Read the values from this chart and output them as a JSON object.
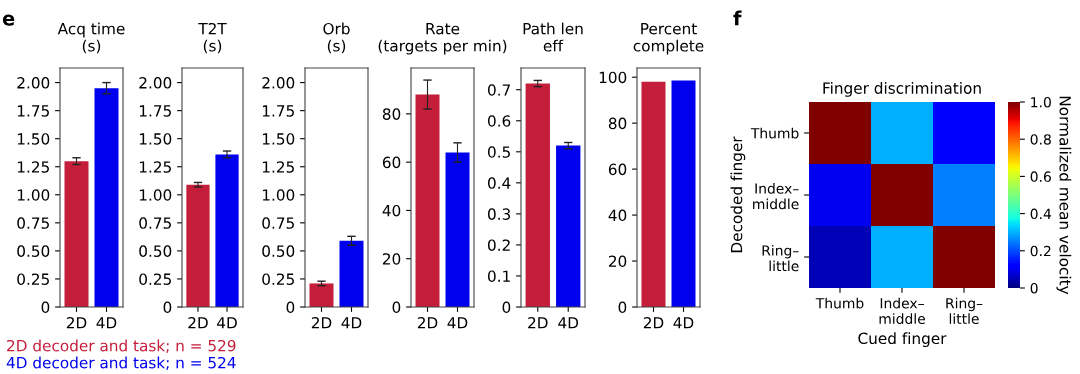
{
  "chart_data": [
    {
      "type": "bar",
      "title": "Acq time\n(s)",
      "categories": [
        "2D",
        "4D"
      ],
      "values": [
        1.3,
        1.95
      ],
      "errors": [
        0.03,
        0.05
      ],
      "colors": [
        "#c41e3a",
        "#0000ee"
      ],
      "ylim": [
        0,
        2.13
      ],
      "yticks": [
        0,
        0.25,
        {
          "value": 0.5,
          "label": "0.50"
        },
        0.75,
        {
          "value": 1.0,
          "label": "1.00"
        },
        1.25,
        {
          "value": 1.5,
          "label": "1.50"
        },
        1.75,
        {
          "value": 2.0,
          "label": "2.00"
        }
      ],
      "grid": false,
      "legend": false,
      "annotations": [
        "e",
        "2D decoder and task; n = 529",
        "4D decoder and task; n = 524"
      ]
    },
    {
      "type": "bar",
      "title": "T2T\n(s)",
      "categories": [
        "2D",
        "4D"
      ],
      "values": [
        1.09,
        1.36
      ],
      "errors": [
        0.02,
        0.03
      ],
      "colors": [
        "#c41e3a",
        "#0000ee"
      ],
      "ylim": [
        0,
        2.13
      ],
      "yticks": [
        0,
        0.25,
        {
          "value": 0.5,
          "label": "0.50"
        },
        0.75,
        {
          "value": 1.0,
          "label": "1.00"
        },
        1.25,
        {
          "value": 1.5,
          "label": "1.50"
        },
        1.75,
        {
          "value": 2.0,
          "label": "2.00"
        }
      ],
      "grid": false,
      "legend": false
    },
    {
      "type": "bar",
      "title": "Orb\n(s)",
      "categories": [
        "2D",
        "4D"
      ],
      "values": [
        0.21,
        0.59
      ],
      "errors": [
        0.02,
        0.04
      ],
      "colors": [
        "#c41e3a",
        "#0000ee"
      ],
      "ylim": [
        0,
        2.13
      ],
      "yticks": [
        0,
        0.25,
        {
          "value": 0.5,
          "label": "0.50"
        },
        0.75,
        {
          "value": 1.0,
          "label": "1.00"
        },
        1.25,
        {
          "value": 1.5,
          "label": "1.50"
        },
        1.75,
        {
          "value": 2.0,
          "label": "2.00"
        }
      ],
      "grid": false,
      "legend": false
    },
    {
      "type": "bar",
      "title": "Rate\n(targets per min)",
      "categories": [
        "2D",
        "4D"
      ],
      "values": [
        88,
        64
      ],
      "errors": [
        6,
        4
      ],
      "colors": [
        "#c41e3a",
        "#0000ee"
      ],
      "ylim": [
        0,
        99
      ],
      "yticks": [
        0,
        20,
        40,
        60,
        80
      ],
      "grid": false,
      "legend": false
    },
    {
      "type": "bar",
      "title": "Path len\neff",
      "categories": [
        "2D",
        "4D"
      ],
      "values": [
        0.72,
        0.52
      ],
      "errors": [
        0.01,
        0.01
      ],
      "colors": [
        "#c41e3a",
        "#0000ee"
      ],
      "ylim": [
        0,
        0.77
      ],
      "yticks": [
        0,
        0.1,
        0.2,
        0.3,
        0.4,
        0.5,
        0.6,
        0.7
      ],
      "grid": false,
      "legend": false
    },
    {
      "type": "bar",
      "title": "Percent\ncomplete",
      "categories": [
        "2D",
        "4D"
      ],
      "values": [
        98,
        98.6
      ],
      "colors": [
        "#c41e3a",
        "#0000ee"
      ],
      "ylim": [
        0,
        104
      ],
      "yticks": [
        0,
        20,
        40,
        60,
        80,
        100
      ],
      "grid": false,
      "legend": false
    },
    {
      "type": "heatmap",
      "title": "Finger discrimination",
      "xlabel": "Cued finger",
      "ylabel": "Decoded finger",
      "clabel": "Normalized mean velocity",
      "categories": [
        "Thumb",
        "Index–\nmiddle",
        "Ring–\nlittle"
      ],
      "y_categories": [
        "Thumb",
        "Index–\nmiddle",
        "Ring–\nlittle"
      ],
      "cells": [
        [
          1.0,
          0.3,
          0.12
        ],
        [
          0.1,
          1.0,
          0.25
        ],
        [
          0.05,
          0.3,
          1.0
        ]
      ],
      "clim": [
        0,
        1
      ],
      "cticks": [
        0,
        0.2,
        0.4,
        0.6,
        0.8,
        {
          "value": 1.0,
          "label": "1.0"
        }
      ],
      "annotations": [
        "f"
      ]
    }
  ]
}
